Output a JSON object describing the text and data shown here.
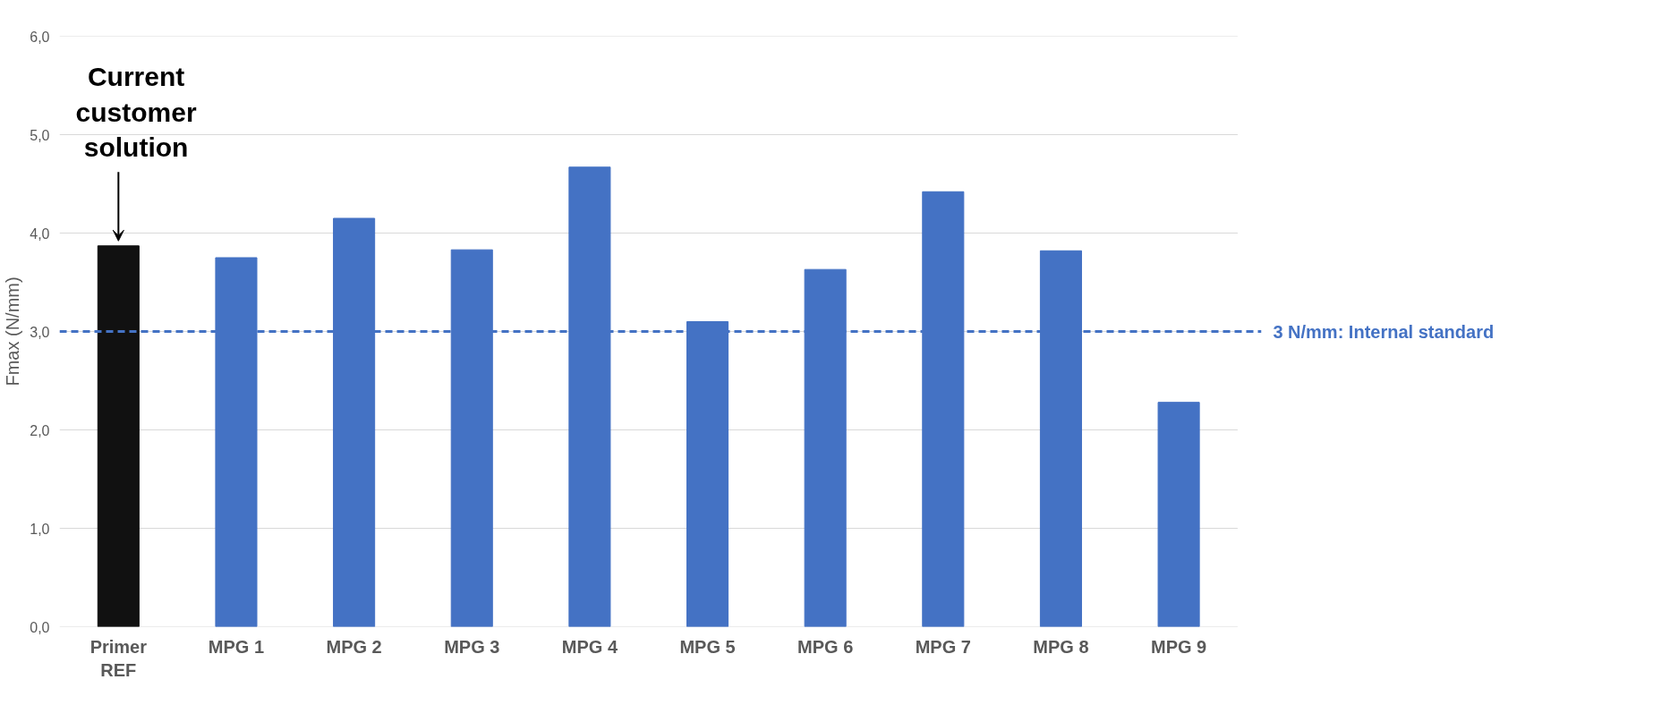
{
  "chart_data": {
    "type": "bar",
    "ylabel": "Fmax (N/mm)",
    "categories": [
      "Primer REF",
      "MPG 1",
      "MPG 2",
      "MPG 3",
      "MPG 4",
      "MPG 5",
      "MPG 6",
      "MPG 7",
      "MPG 8",
      "MPG 9"
    ],
    "values": [
      3.87,
      3.75,
      4.15,
      3.83,
      4.67,
      3.1,
      3.63,
      4.42,
      3.82,
      2.28
    ],
    "colors": [
      "#111111",
      "#4472c4",
      "#4472c4",
      "#4472c4",
      "#4472c4",
      "#4472c4",
      "#4472c4",
      "#4472c4",
      "#4472c4",
      "#4472c4"
    ],
    "ylim": [
      0,
      6
    ],
    "yticks": [
      {
        "value": 0,
        "label": "0,0"
      },
      {
        "value": 1,
        "label": "1,0"
      },
      {
        "value": 2,
        "label": "2,0"
      },
      {
        "value": 3,
        "label": "3,0"
      },
      {
        "value": 4,
        "label": "4,0"
      },
      {
        "value": 5,
        "label": "5,0"
      },
      {
        "value": 6,
        "label": "6,0"
      }
    ],
    "grid": "y",
    "ref_lines": [
      {
        "axis": "y",
        "value": 3,
        "label": "3 N/mm: Internal standard",
        "color": "#4472c4",
        "line_style": "dashed"
      }
    ],
    "annotations": [
      {
        "text": "Current customer solution",
        "x": "Primer REF",
        "y": 3.87
      }
    ]
  }
}
